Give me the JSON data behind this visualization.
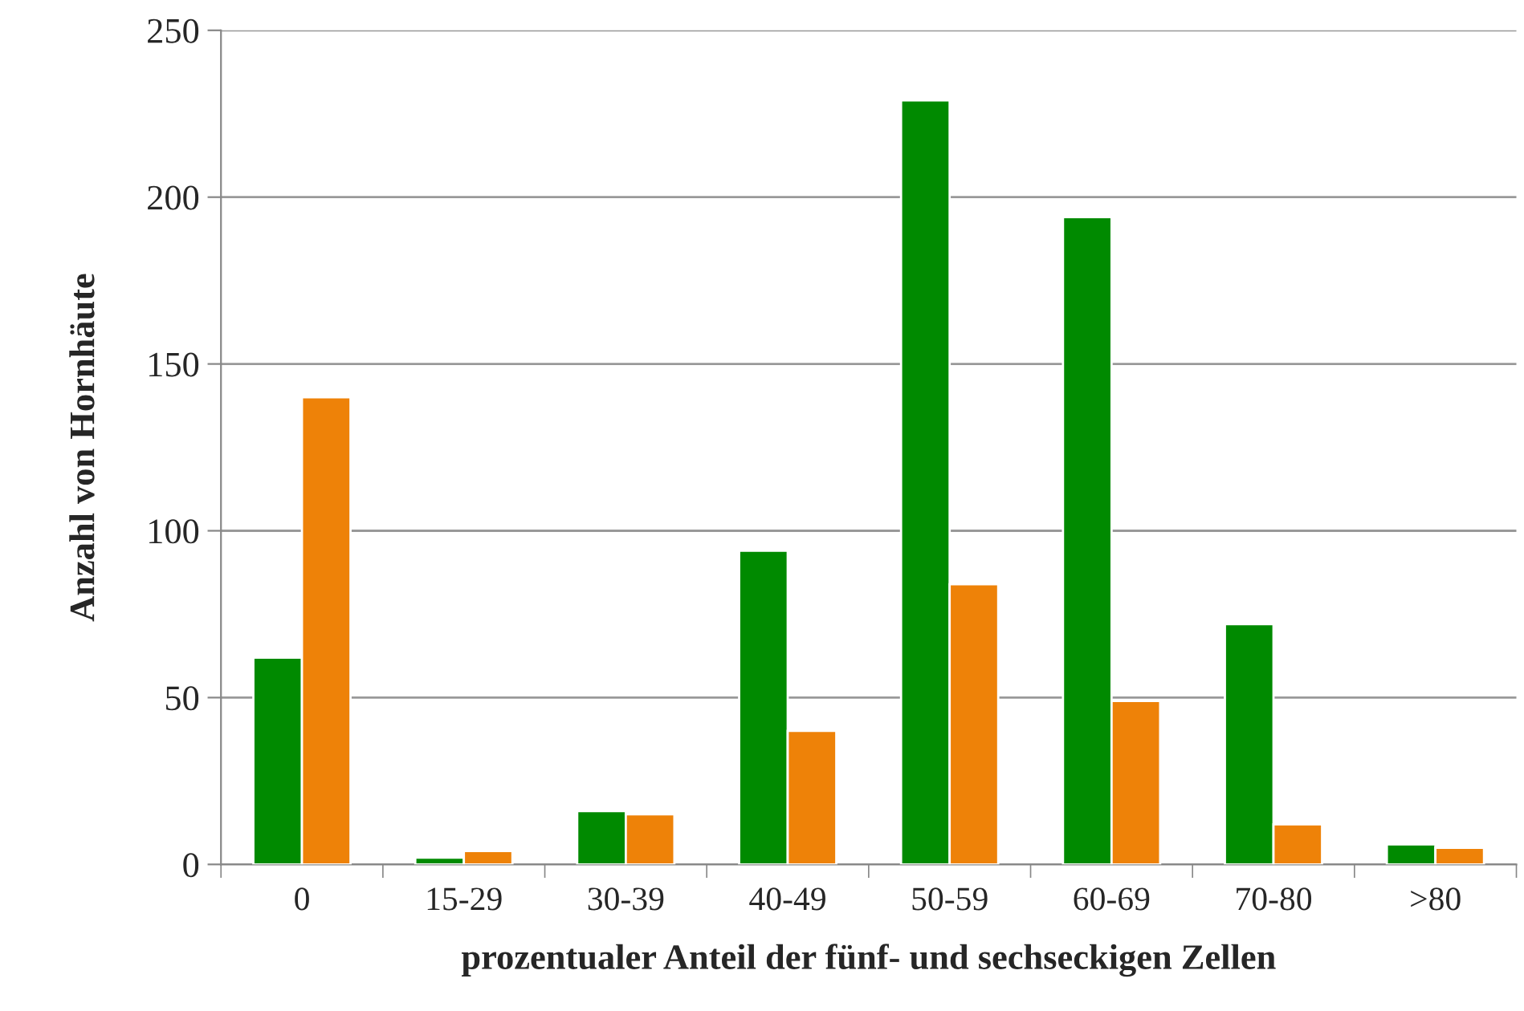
{
  "chart_data": {
    "type": "bar",
    "xlabel": "prozentualer Anteil der fünf- und sechseckigen Zellen",
    "ylabel": "Anzahl von Hornhäute",
    "categories": [
      "0",
      "15-29",
      "30-39",
      "40-49",
      "50-59",
      "60-69",
      "70-80",
      ">80"
    ],
    "series": [
      {
        "color": "#008a00",
        "values": [
          62,
          2,
          16,
          94,
          229,
          194,
          72,
          6
        ]
      },
      {
        "color": "#ee8208",
        "values": [
          140,
          4,
          15,
          40,
          84,
          49,
          12,
          5
        ]
      }
    ],
    "ylim": [
      0,
      250
    ],
    "yticks": [
      0,
      50,
      100,
      150,
      200,
      250
    ],
    "grid": "y"
  }
}
